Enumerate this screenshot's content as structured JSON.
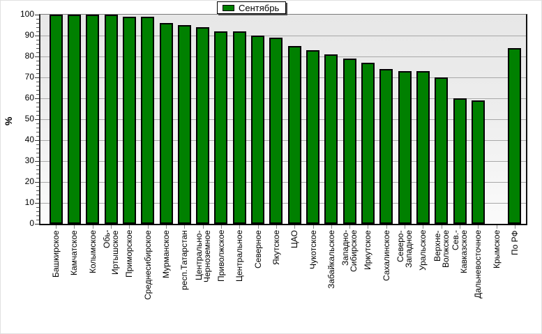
{
  "chart_data": {
    "type": "bar",
    "title": "",
    "ylabel": "%",
    "ylim": [
      0,
      100
    ],
    "ytick_step": 10,
    "ytick_minor_step": 2,
    "grid": true,
    "legend_position": "top-center",
    "plot_bg": "#ebebeb",
    "grid_color": "#a8a8a8",
    "bar_border_color": "#000000",
    "categories": [
      "Башкирское",
      "Камчатское",
      "Колымское",
      "Обь-\nИртышское",
      "Приморское",
      "Среднесибирское",
      "Мурманское",
      "респ.Татарстан",
      "Центрально-\nЧерноземное",
      "Приволжское",
      "Центральное",
      "Северное",
      "Якутское",
      "ЦАО",
      "Чукотское",
      "Забайкальское",
      "Западно-\nСибирское",
      "Иркутское",
      "Сахалинское",
      "Северо-\nЗападное",
      "Уральское",
      "Верхне-\nВолжское",
      "Сев.-\nКавказское",
      "Дальневосточное",
      "Крымское",
      "По РФ"
    ],
    "series": [
      {
        "name": "Сентябрь",
        "color": "#008000",
        "values": [
          100,
          100,
          100,
          100,
          99,
          99,
          96,
          95,
          94,
          92,
          92,
          90,
          89,
          85,
          83,
          81,
          79,
          77,
          74,
          73,
          73,
          70,
          60,
          59,
          0,
          84
        ]
      }
    ]
  }
}
